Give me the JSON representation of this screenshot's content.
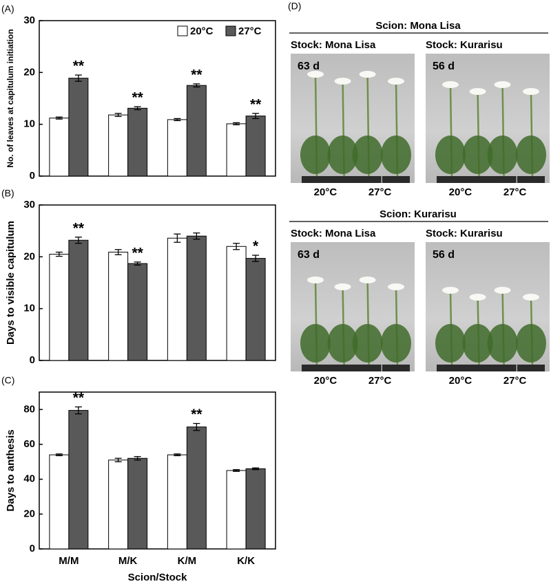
{
  "chart_data": [
    {
      "type": "bar",
      "panel_label": "(A)",
      "ylabel": "No. of leaves at capitulum initiation",
      "categories": [
        null,
        null,
        null,
        null
      ],
      "series": [
        {
          "name": "20°C",
          "color": "#ffffff",
          "values": [
            11.2,
            11.8,
            10.9,
            10.1
          ],
          "errors": [
            0.2,
            0.3,
            0.2,
            0.2
          ]
        },
        {
          "name": "27°C",
          "color": "#595959",
          "values": [
            18.9,
            13.1,
            17.5,
            11.6
          ],
          "errors": [
            0.6,
            0.3,
            0.3,
            0.5
          ]
        }
      ],
      "annotations": [
        "**",
        "**",
        "**",
        "**"
      ],
      "ylim": [
        0,
        30
      ],
      "yticks": [
        0,
        10,
        20,
        30
      ]
    },
    {
      "type": "bar",
      "panel_label": "(B)",
      "ylabel": "Days to visible capitulum",
      "categories": [
        null,
        null,
        null,
        null
      ],
      "series": [
        {
          "color": "#ffffff",
          "values": [
            20.5,
            20.9,
            23.6,
            22.0
          ],
          "errors": [
            0.4,
            0.5,
            0.8,
            0.6
          ]
        },
        {
          "color": "#595959",
          "values": [
            23.2,
            18.7,
            24.0,
            19.7
          ],
          "errors": [
            0.6,
            0.3,
            0.6,
            0.6
          ]
        }
      ],
      "annotations": [
        "**",
        "**",
        null,
        "*"
      ],
      "ylim": [
        0,
        30
      ],
      "yticks": [
        0,
        10,
        20,
        30
      ]
    },
    {
      "type": "bar",
      "panel_label": "(C)",
      "ylabel": "Days to anthesis",
      "xlabel": "Scion/Stock",
      "categories": [
        "M/M",
        "M/K",
        "K/M",
        "K/K"
      ],
      "series": [
        {
          "color": "#ffffff",
          "values": [
            54,
            51,
            54,
            45
          ],
          "errors": [
            0.5,
            1,
            0.5,
            0.5
          ]
        },
        {
          "color": "#595959",
          "values": [
            79.5,
            52,
            70,
            46
          ],
          "errors": [
            2,
            1,
            2,
            0.5
          ]
        }
      ],
      "annotations": [
        "**",
        null,
        "**",
        null
      ],
      "ylim": [
        0,
        90
      ],
      "yticks": [
        0,
        20,
        40,
        60,
        80
      ]
    }
  ],
  "photo_panel": {
    "panel_label": "(D)",
    "groups": [
      {
        "scion": "Scion: Mona Lisa",
        "stocks": [
          {
            "label": "Stock: Mona Lisa",
            "days": "63 d",
            "temps": [
              "20°C",
              "27°C"
            ]
          },
          {
            "label": "Stock: Kurarisu",
            "days": "56 d",
            "temps": [
              "20°C",
              "27°C"
            ]
          }
        ]
      },
      {
        "scion": "Scion: Kurarisu",
        "stocks": [
          {
            "label": "Stock: Mona Lisa",
            "days": "63 d",
            "temps": [
              "20°C",
              "27°C"
            ]
          },
          {
            "label": "Stock: Kurarisu",
            "days": "56 d",
            "temps": [
              "20°C",
              "27°C"
            ]
          }
        ]
      }
    ]
  }
}
